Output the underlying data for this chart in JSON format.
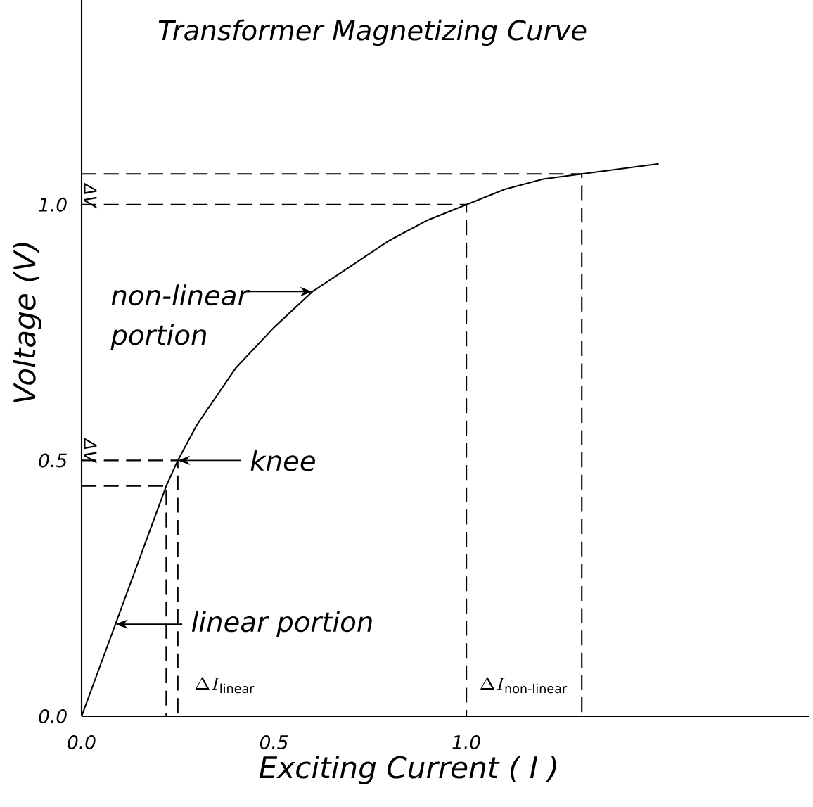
{
  "chart_data": {
    "type": "line",
    "title": "Transformer Magnetizing Curve",
    "xlabel": "Exciting Current ( I )",
    "ylabel": "Voltage (V)",
    "xlim": [
      0,
      1.89
    ],
    "ylim": [
      0,
      1.4
    ],
    "xticks": [
      {
        "value": 0,
        "label": "0.0"
      },
      {
        "value": 0.5,
        "label": "0.5"
      },
      {
        "value": 1.0,
        "label": "1.0"
      }
    ],
    "yticks": [
      {
        "value": 0,
        "label": "0.0"
      },
      {
        "value": 0.5,
        "label": "0.5"
      },
      {
        "value": 1.0,
        "label": "1.0"
      }
    ],
    "series": [
      {
        "color": "#000000",
        "line_style": "solid",
        "x": [
          0,
          0.22,
          0.25,
          0.3,
          0.4,
          0.5,
          0.6,
          0.7,
          0.8,
          0.9,
          1.0,
          1.1,
          1.2,
          1.3,
          1.5
        ],
        "values": [
          0,
          0.45,
          0.5,
          0.57,
          0.68,
          0.76,
          0.83,
          0.88,
          0.93,
          0.97,
          1.0,
          1.03,
          1.05,
          1.06,
          1.08
        ]
      },
      {
        "color": "#000000",
        "line_style": "dashed",
        "x": [
          0,
          1.3,
          1.3
        ],
        "values": [
          1.06,
          1.06,
          0
        ]
      },
      {
        "color": "#000000",
        "line_style": "dashed",
        "x": [
          0,
          1.0,
          1.0
        ],
        "values": [
          1.0,
          1.0,
          0
        ]
      },
      {
        "color": "#000000",
        "line_style": "dashed",
        "x": [
          0,
          0.25,
          0.25
        ],
        "values": [
          0.5,
          0.5,
          0
        ]
      },
      {
        "color": "#000000",
        "line_style": "dashed",
        "x": [
          0,
          0.22,
          0.22
        ],
        "values": [
          0.45,
          0.45,
          0
        ]
      }
    ],
    "annotations": [
      {
        "text": "non-linear portion",
        "x": 0.6,
        "y": 0.83
      },
      {
        "text": "knee",
        "x": 0.25,
        "y": 0.5
      },
      {
        "text": "linear portion",
        "x": 0.088,
        "y": 0.18
      },
      "ΔV",
      "ΔV",
      "\\Delta I_{\\text{linear}}",
      "\\Delta I_{\\text{non-linear}}"
    ]
  }
}
